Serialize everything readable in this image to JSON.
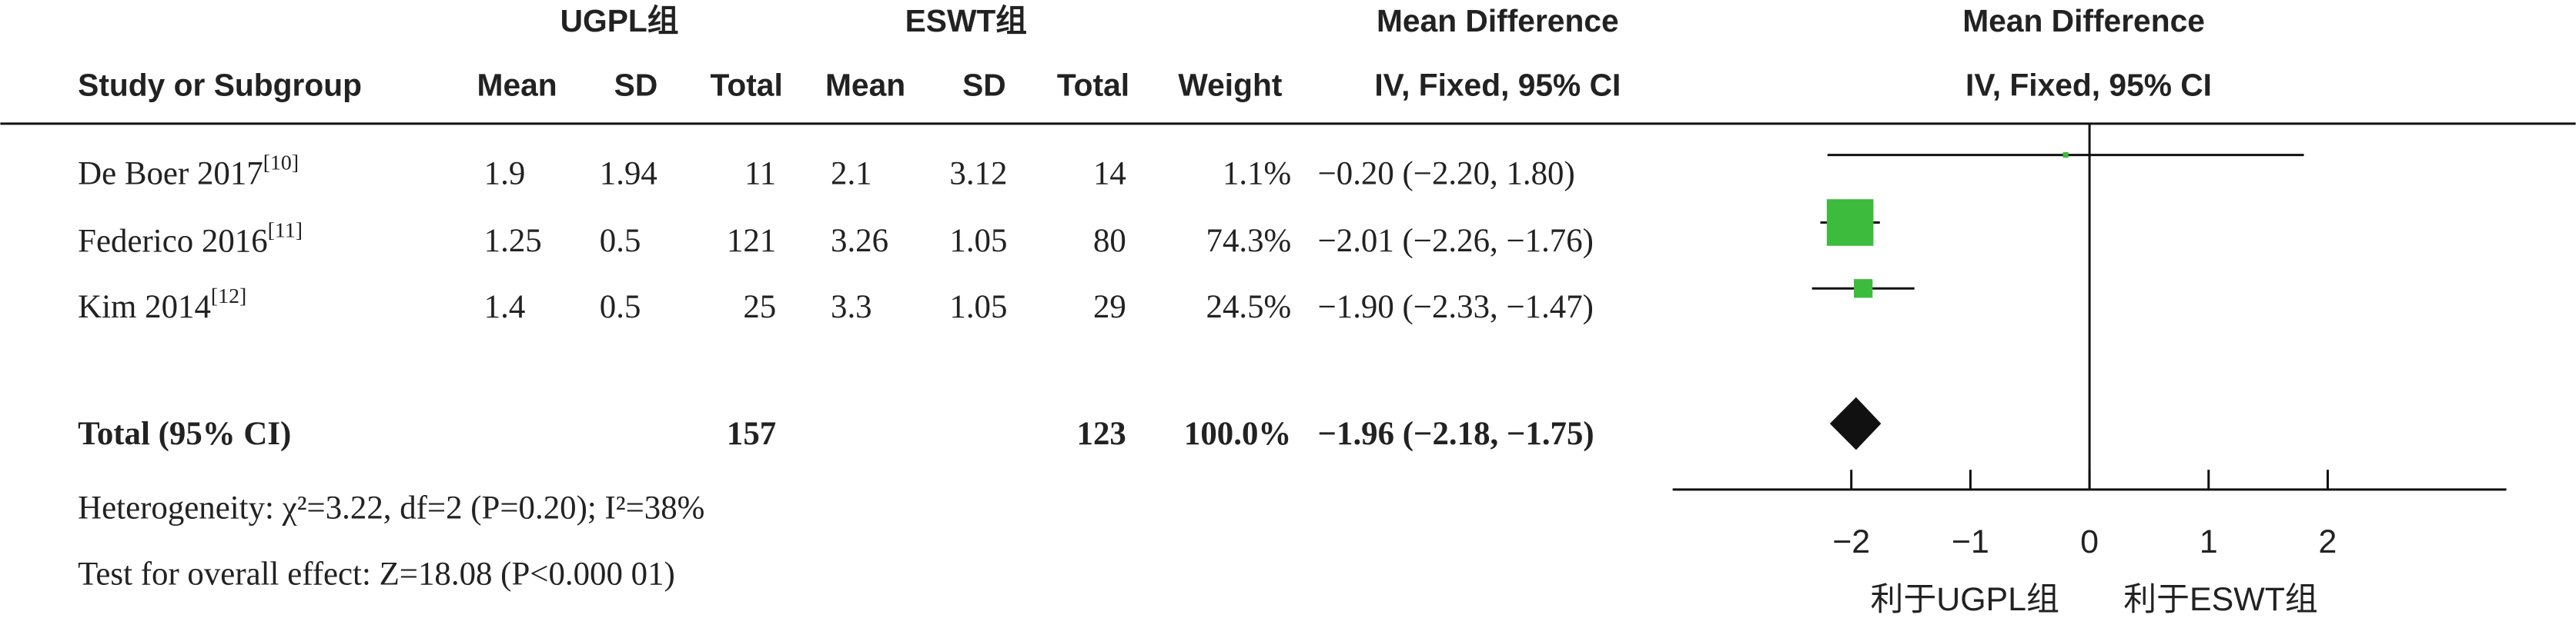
{
  "chart_data": {
    "type": "forest",
    "group_headers": [
      "UGPL组",
      "ESWT组"
    ],
    "effect_header": [
      "Mean Difference",
      "IV, Fixed, 95% CI"
    ],
    "plot_header": [
      "Mean Difference",
      "IV, Fixed, 95% CI"
    ],
    "columns": [
      "Study or Subgroup",
      "Mean",
      "SD",
      "Total",
      "Mean",
      "SD",
      "Total",
      "Weight"
    ],
    "studies": [
      {
        "name": "De Boer 2017",
        "ref": "[10]",
        "mean1": 1.9,
        "sd1": 1.94,
        "total1": 11,
        "mean2": 2.1,
        "sd2": 3.12,
        "total2": 14,
        "weight": 1.1,
        "weight_label": "1.1%",
        "md": -0.2,
        "lower": -2.2,
        "upper": 1.8,
        "ci_label": "−0.20 (−2.20, 1.80)"
      },
      {
        "name": "Federico 2016",
        "ref": "[11]",
        "mean1": 1.25,
        "sd1": 0.5,
        "total1": 121,
        "mean2": 3.26,
        "sd2": 1.05,
        "total2": 80,
        "weight": 74.3,
        "weight_label": "74.3%",
        "md": -2.01,
        "lower": -2.26,
        "upper": -1.76,
        "ci_label": "−2.01 (−2.26, −1.76)"
      },
      {
        "name": "Kim 2014",
        "ref": "[12]",
        "mean1": 1.4,
        "sd1": 0.5,
        "total1": 25,
        "mean2": 3.3,
        "sd2": 1.05,
        "total2": 29,
        "weight": 24.5,
        "weight_label": "24.5%",
        "md": -1.9,
        "lower": -2.33,
        "upper": -1.47,
        "ci_label": "−1.90 (−2.33, −1.47)"
      }
    ],
    "total": {
      "name": "Total (95% CI)",
      "total1": 157,
      "total2": 123,
      "weight": 100,
      "weight_label": "100.0%",
      "md": -1.96,
      "lower": -2.18,
      "upper": -1.75,
      "ci_label": "−1.96 (−2.18, −1.75)"
    },
    "heterogeneity": "Heterogeneity: χ²=3.22, df=2 (P=0.20); I²=38%",
    "overall_effect": "Test for overall effect: Z=18.08 (P<0.000 01)",
    "xlim": [
      -3.5,
      3.5
    ],
    "xticks": [
      {
        "value": -2,
        "label": "−2"
      },
      {
        "value": -1,
        "label": "−1"
      },
      0,
      1,
      2
    ],
    "favours": [
      "利于UGPL组",
      "利于ESWT组"
    ],
    "marker_color": "#3dbb3d",
    "diamond_color": "#111111"
  }
}
